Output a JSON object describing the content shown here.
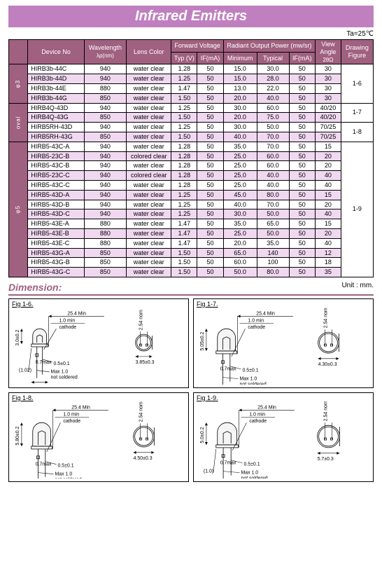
{
  "title": "Infrared Emitters",
  "ta": "Ta=25℃",
  "headers": {
    "device": "Device No",
    "wavelength_l1": "Wavelength",
    "wavelength_l2": "λp(nm)",
    "lens": "Lens Color",
    "fv_group": "Forward Voltage",
    "fv_typ": "Typ (V)",
    "fv_if": "IF(mA)",
    "ro_group": "Radiant Output Power (mw/sr)",
    "ro_min": "Minimum",
    "ro_typ": "Typical",
    "ro_if": "IF(mA)",
    "va_l1": "View",
    "va_l2": "Angle",
    "va_l3": "2θΩ",
    "fig": "Drawing",
    "fig2": "Figure"
  },
  "groups": [
    {
      "label": "φ3",
      "fig": "1-6",
      "rows": [
        {
          "id": "HIRB3b-44C",
          "wl": "940",
          "lens": "water clear",
          "vt": "1.28",
          "if1": "50",
          "min": "15.0",
          "typ": "30.0",
          "if2": "50",
          "va": "30"
        },
        {
          "id": "HIRB3b-44D",
          "wl": "940",
          "lens": "water clear",
          "vt": "1.25",
          "if1": "50",
          "min": "15.0",
          "typ": "28.0",
          "if2": "50",
          "va": "30"
        },
        {
          "id": "HIRB3b-44E",
          "wl": "880",
          "lens": "water clear",
          "vt": "1.47",
          "if1": "50",
          "min": "13.0",
          "typ": "22.0",
          "if2": "50",
          "va": "30"
        },
        {
          "id": "HIRB3b-44G",
          "wl": "850",
          "lens": "water clear",
          "vt": "1.50",
          "if1": "50",
          "min": "20.0",
          "typ": "40.0",
          "if2": "50",
          "va": "30"
        }
      ]
    },
    {
      "label": "oval",
      "figs": [
        {
          "fig": "1-7",
          "span": 2,
          "rows": [
            {
              "id": "HIRB4Q-43D",
              "wl": "940",
              "lens": "water clear",
              "vt": "1.25",
              "if1": "50",
              "min": "30.0",
              "typ": "60.0",
              "if2": "50",
              "va": "40/20"
            },
            {
              "id": "HIRB4Q-43G",
              "wl": "850",
              "lens": "water clear",
              "vt": "1.50",
              "if1": "50",
              "min": "20.0",
              "typ": "75.0",
              "if2": "50",
              "va": "40/20"
            }
          ]
        },
        {
          "fig": "1-8",
          "span": 2,
          "rows": [
            {
              "id": "HIRB5RH-43D",
              "wl": "940",
              "lens": "water clear",
              "vt": "1.25",
              "if1": "50",
              "min": "30.0",
              "typ": "50.0",
              "if2": "50",
              "va": "70/25"
            },
            {
              "id": "HIRB5RH-43G",
              "wl": "850",
              "lens": "water clear",
              "vt": "1.50",
              "if1": "50",
              "min": "40.0",
              "typ": "70.0",
              "if2": "50",
              "va": "70/25"
            }
          ]
        }
      ]
    },
    {
      "label": "φ5",
      "fig": "1-9",
      "rows": [
        {
          "id": "HIRB5-43C-A",
          "wl": "940",
          "lens": "water clear",
          "vt": "1.28",
          "if1": "50",
          "min": "35.0",
          "typ": "70.0",
          "if2": "50",
          "va": "15"
        },
        {
          "id": "HIRB5-23C-B",
          "wl": "940",
          "lens": "colored clear",
          "vt": "1.28",
          "if1": "50",
          "min": "25.0",
          "typ": "60.0",
          "if2": "50",
          "va": "20"
        },
        {
          "id": "HIRB5-43C-B",
          "wl": "940",
          "lens": "water clear",
          "vt": "1.28",
          "if1": "50",
          "min": "25.0",
          "typ": "60.0",
          "if2": "50",
          "va": "20"
        },
        {
          "id": "HIRB5-23C-C",
          "wl": "940",
          "lens": "colored clear",
          "vt": "1.28",
          "if1": "50",
          "min": "25.0",
          "typ": "40.0",
          "if2": "50",
          "va": "40"
        },
        {
          "id": "HIRB5-43C-C",
          "wl": "940",
          "lens": "water clear",
          "vt": "1.28",
          "if1": "50",
          "min": "25.0",
          "typ": "40.0",
          "if2": "50",
          "va": "40"
        },
        {
          "id": "HIRB5-43D-A",
          "wl": "940",
          "lens": "water clear",
          "vt": "1.25",
          "if1": "50",
          "min": "45.0",
          "typ": "80.0",
          "if2": "50",
          "va": "15"
        },
        {
          "id": "HIRB5-43D-B",
          "wl": "940",
          "lens": "water clear",
          "vt": "1.25",
          "if1": "50",
          "min": "40.0",
          "typ": "70.0",
          "if2": "50",
          "va": "20"
        },
        {
          "id": "HIRB5-43D-C",
          "wl": "940",
          "lens": "water clear",
          "vt": "1.25",
          "if1": "50",
          "min": "30.0",
          "typ": "50.0",
          "if2": "50",
          "va": "40"
        },
        {
          "id": "HIRB5-43E-A",
          "wl": "880",
          "lens": "water clear",
          "vt": "1.47",
          "if1": "50",
          "min": "35.0",
          "typ": "65.0",
          "if2": "50",
          "va": "15"
        },
        {
          "id": "HIRB5-43E-B",
          "wl": "880",
          "lens": "water clear",
          "vt": "1.47",
          "if1": "50",
          "min": "25.0",
          "typ": "50.0",
          "if2": "50",
          "va": "20"
        },
        {
          "id": "HIRB5-43E-C",
          "wl": "880",
          "lens": "water clear",
          "vt": "1.47",
          "if1": "50",
          "min": "20.0",
          "typ": "35.0",
          "if2": "50",
          "va": "40"
        },
        {
          "id": "HIRB5-43G-A",
          "wl": "850",
          "lens": "water clear",
          "vt": "1.50",
          "if1": "50",
          "min": "65.0",
          "typ": "140",
          "if2": "50",
          "va": "12"
        },
        {
          "id": "HIRB5-43G-B",
          "wl": "850",
          "lens": "water clear",
          "vt": "1.50",
          "if1": "50",
          "min": "60.0",
          "typ": "100",
          "if2": "50",
          "va": "18"
        },
        {
          "id": "HIRB5-43G-C",
          "wl": "850",
          "lens": "water clear",
          "vt": "1.50",
          "if1": "50",
          "min": "50.0",
          "typ": "80.0",
          "if2": "50",
          "va": "35"
        }
      ]
    }
  ],
  "dimension_label": "Dimension:",
  "unit": "Unit : mm.",
  "fig_labels": {
    "f16": "Fig 1-6.",
    "f17": "Fig 1-7.",
    "f18": "Fig 1-8.",
    "f19": "Fig 1-9."
  },
  "dims": {
    "len_min": "25.4 Min",
    "lead_min": "1.0 min",
    "cathode": "cathode",
    "sq": "0.7max",
    "lead": "0.5±0.1",
    "nom": "2.54 nom",
    "notsold": "Max 1.0\nnot soldered",
    "f16_h": "3.0±0.2",
    "f16_x": "(1.02)",
    "f16_b": "5.3±0.3",
    "f16_d": "3.85±0.3",
    "f17_h": "5.05±0.2",
    "f17_b": "7.4±0.3",
    "f17_d": "4.30±0.3",
    "f18_h": "5.80±0.2",
    "f18_b": "7.6±0.3",
    "f18_d": "4.50±0.3",
    "f19_h": "5.0±0.2",
    "f19_x": "(1.0)",
    "f19_b": "8.7±0.3",
    "f19_d": "5.7±0.3"
  }
}
